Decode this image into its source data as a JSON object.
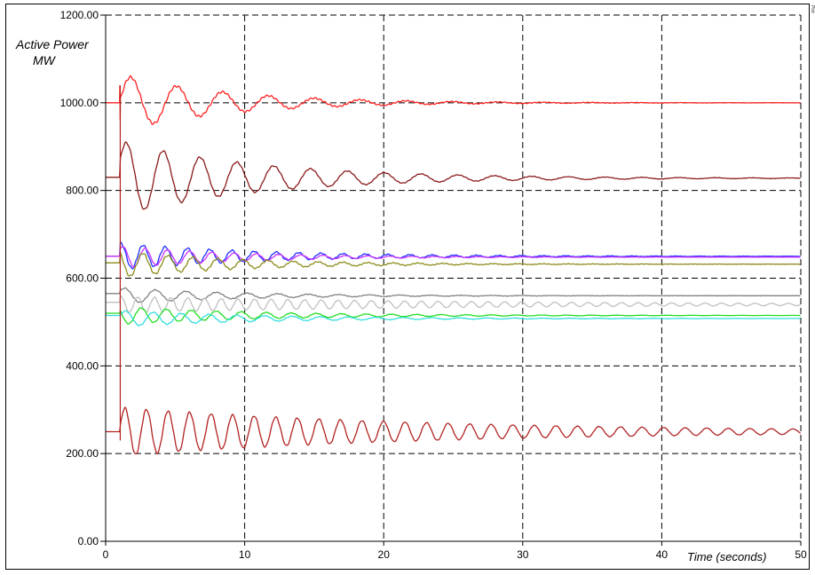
{
  "chart_data": {
    "type": "line",
    "ylabel_line1": "Active Power",
    "ylabel_line2": "MW",
    "xlabel": "Time (seconds)",
    "corner_tag": "Plot",
    "xlim": [
      0,
      50
    ],
    "ylim": [
      0,
      1200
    ],
    "x_ticks": [
      "0",
      "10",
      "20",
      "30",
      "40",
      "50"
    ],
    "y_ticks": [
      "0.00",
      "200.00",
      "400.00",
      "600.00",
      "800.00",
      "1000.00",
      "1200.00"
    ],
    "grid": true,
    "series": [
      {
        "color": "#ff2020",
        "final": 1000,
        "pre": 1000,
        "spike": 1040,
        "amp": 65,
        "period": 3.3,
        "decay": 0.13,
        "phase": 0,
        "jitter": 3
      },
      {
        "color": "#8b1a1a",
        "final": 828,
        "pre": 830,
        "spike": 0,
        "amp": 85,
        "period": 2.65,
        "decay": 0.1,
        "phase": 0.4,
        "jitter": 2
      },
      {
        "color": "#1f2fff",
        "final": 650,
        "pre": 650,
        "spike": 0,
        "amp": 30,
        "period": 1.6,
        "decay": 0.1,
        "phase": 1.2,
        "jitter": 2
      },
      {
        "color": "#cc33ff",
        "final": 648,
        "pre": 650,
        "spike": 0,
        "amp": 25,
        "period": 1.6,
        "decay": 0.12,
        "phase": 0.6,
        "jitter": 1
      },
      {
        "color": "#8b8b1a",
        "final": 632,
        "pre": 635,
        "spike": 0,
        "amp": 30,
        "period": 1.8,
        "decay": 0.12,
        "phase": 2.0,
        "jitter": 2
      },
      {
        "color": "#808080",
        "final": 560,
        "pre": 565,
        "spike": 0,
        "amp": 18,
        "period": 2.2,
        "decay": 0.12,
        "phase": 0.5,
        "jitter": 1
      },
      {
        "color": "#c0c0c0",
        "final": 540,
        "pre": 545,
        "spike": 0,
        "amp": 18,
        "period": 1.2,
        "decay": 0.04,
        "phase": 1.0,
        "jitter": 1
      },
      {
        "color": "#22dd22",
        "final": 515,
        "pre": 520,
        "spike": 0,
        "amp": 20,
        "period": 1.8,
        "decay": 0.1,
        "phase": 2.4,
        "jitter": 1
      },
      {
        "color": "#33dddd",
        "final": 508,
        "pre": 515,
        "spike": 0,
        "amp": 18,
        "period": 2.0,
        "decay": 0.1,
        "phase": 0.2,
        "jitter": 1
      },
      {
        "color": "#b22222",
        "final": 250,
        "pre": 250,
        "spike": 0,
        "amp": 55,
        "period": 1.55,
        "decay": 0.045,
        "phase": 0,
        "jitter": 2
      }
    ]
  }
}
